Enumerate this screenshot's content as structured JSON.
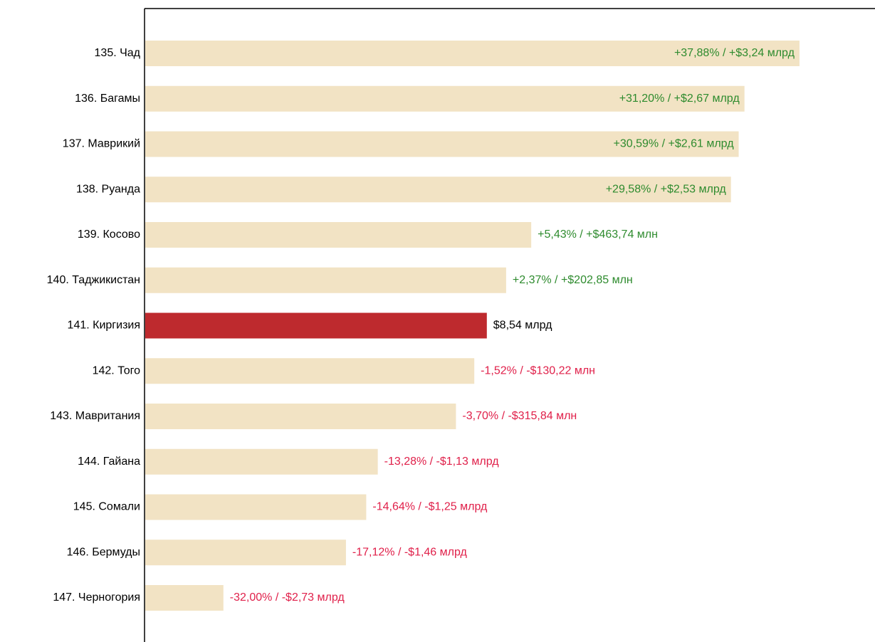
{
  "chart_data": {
    "type": "bar",
    "orientation": "horizontal",
    "categories": [
      "135. Чад",
      "136. Багамы",
      "137. Маврикий",
      "138. Руанда",
      "139. Косово",
      "140. Таджикистан",
      "141. Киргизия",
      "142. Того",
      "143. Мавритания",
      "144. Гайана",
      "145. Сомали",
      "146. Бермуды",
      "147. Черногория"
    ],
    "values": [
      11.78,
      11.21,
      11.15,
      11.07,
      9.0,
      8.74,
      8.54,
      8.41,
      8.22,
      7.41,
      7.29,
      7.08,
      5.81
    ],
    "colors": [
      "#f2e3c4",
      "#f2e3c4",
      "#f2e3c4",
      "#f2e3c4",
      "#f2e3c4",
      "#f2e3c4",
      "#be2a2e",
      "#f2e3c4",
      "#f2e3c4",
      "#f2e3c4",
      "#f2e3c4",
      "#f2e3c4",
      "#f2e3c4"
    ],
    "annotations": [
      "+37,88% / +$3,24 млрд",
      "+31,20% / +$2,67 млрд",
      "+30,59% / +$2,61 млрд",
      "+29,58% / +$2,53 млрд",
      "+5,43% / +$463,74 млн",
      "+2,37% / +$202,85 млн",
      "$8,54 млрд",
      "-1,52% / -$130,22 млн",
      "-3,70% / -$315,84 млн",
      "-13,28% / -$1,13 млрд",
      "-14,64% / -$1,25 млрд",
      "-17,12% / -$1,46 млрд",
      "-32,00% / -$2,73 млрд"
    ],
    "annotation_colors": [
      "#2e8b2e",
      "#2e8b2e",
      "#2e8b2e",
      "#2e8b2e",
      "#2e8b2e",
      "#2e8b2e",
      "#000000",
      "#e0204a",
      "#e0204a",
      "#e0204a",
      "#e0204a",
      "#e0204a",
      "#e0204a"
    ],
    "xlim": [
      5,
      12.57
    ]
  }
}
